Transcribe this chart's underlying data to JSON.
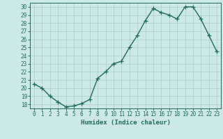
{
  "x": [
    0,
    1,
    2,
    3,
    4,
    5,
    6,
    7,
    8,
    9,
    10,
    11,
    12,
    13,
    14,
    15,
    16,
    17,
    18,
    19,
    20,
    21,
    22,
    23
  ],
  "y": [
    20.5,
    20.0,
    19.0,
    18.3,
    17.7,
    17.8,
    18.1,
    18.6,
    21.2,
    22.0,
    23.0,
    23.3,
    25.0,
    26.5,
    28.3,
    29.8,
    29.3,
    29.0,
    28.5,
    30.0,
    30.0,
    28.5,
    26.5,
    24.5
  ],
  "line_color": "#1f6b5a",
  "marker": "+",
  "marker_size": 4,
  "marker_linewidth": 0.9,
  "xlabel": "Humidex (Indice chaleur)",
  "ylim": [
    17.5,
    30.5
  ],
  "xlim": [
    -0.5,
    23.5
  ],
  "yticks": [
    18,
    19,
    20,
    21,
    22,
    23,
    24,
    25,
    26,
    27,
    28,
    29,
    30
  ],
  "xticks": [
    0,
    1,
    2,
    3,
    4,
    5,
    6,
    7,
    8,
    9,
    10,
    11,
    12,
    13,
    14,
    15,
    16,
    17,
    18,
    19,
    20,
    21,
    22,
    23
  ],
  "bg_color": "#cce8e8",
  "grid_color": "#b0d0d0",
  "line_width": 1.0,
  "tick_color": "#1f6b5a",
  "label_color": "#1f6b5a",
  "font_size_ticks": 5.5,
  "font_size_label": 6.5
}
